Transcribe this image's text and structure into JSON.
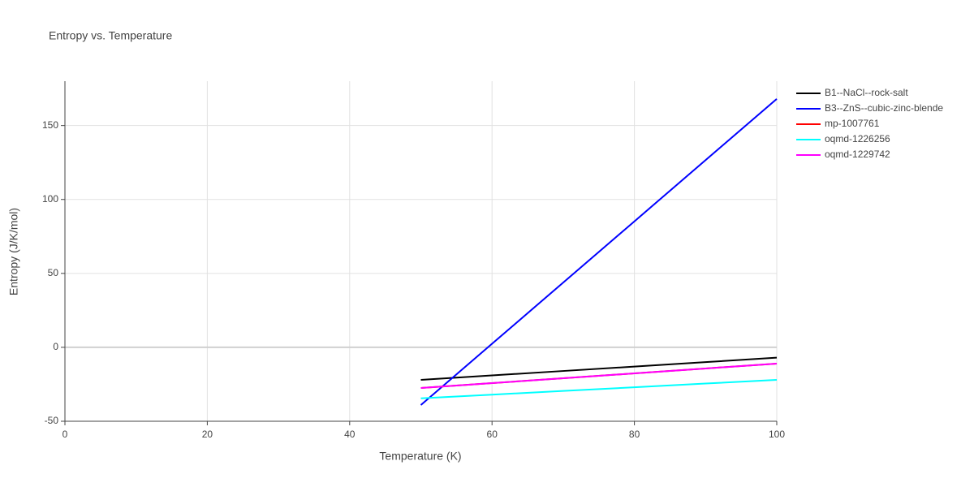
{
  "chart_data": {
    "type": "line",
    "title": "Entropy vs. Temperature",
    "x_label": "Temperature (K)",
    "y_label": "Entropy (J/K/mol)",
    "x": [
      50,
      60,
      70,
      80,
      90,
      100
    ],
    "series": [
      {
        "name": "B1--NaCl--rock-salt",
        "color": "#000000",
        "values": [
          -22,
          -19,
          -16,
          -13,
          -10,
          -7
        ]
      },
      {
        "name": "B3--ZnS--cubic-zinc-blende",
        "color": "#0000ff",
        "values": [
          -39,
          2.4,
          43.8,
          85.2,
          126.6,
          168
        ]
      },
      {
        "name": "mp-1007761",
        "color": "#ff0000",
        "values": [
          -27.5,
          -24.2,
          -20.9,
          -17.6,
          -14.3,
          -11
        ]
      },
      {
        "name": "oqmd-1226256",
        "color": "#00ffff",
        "values": [
          -34.5,
          -32,
          -29.5,
          -27,
          -24.5,
          -22
        ]
      },
      {
        "name": "oqmd-1229742",
        "color": "#ff00ff",
        "values": [
          -27.5,
          -24.2,
          -20.9,
          -17.6,
          -14.3,
          -11
        ]
      }
    ],
    "xlim": [
      0,
      100
    ],
    "xticks": [
      0,
      20,
      40,
      60,
      80,
      100
    ],
    "ylim": [
      -50,
      180
    ],
    "yticks": [
      -50,
      0,
      50,
      100,
      150
    ],
    "grid": true
  }
}
